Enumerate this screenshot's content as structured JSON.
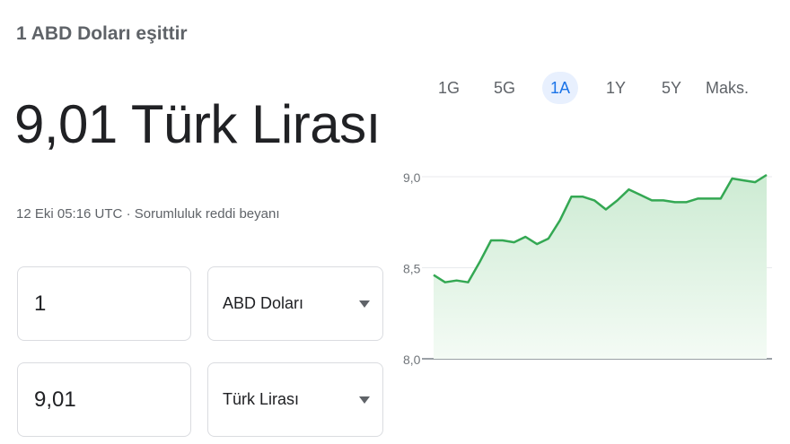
{
  "header": {
    "subtitle": "1 ABD Doları eşittir",
    "result": "9,01 Türk Lirası",
    "timestamp": "12 Eki 05:16 UTC",
    "separator": "·",
    "disclaimer": "Sorumluluk reddi beyanı"
  },
  "converter": {
    "from_amount": "1",
    "from_currency": "ABD Doları",
    "to_amount": "9,01",
    "to_currency": "Türk Lirası"
  },
  "range_tabs": [
    {
      "label": "1G",
      "active": false
    },
    {
      "label": "5G",
      "active": false
    },
    {
      "label": "1A",
      "active": true
    },
    {
      "label": "1Y",
      "active": false
    },
    {
      "label": "5Y",
      "active": false
    },
    {
      "label": "Maks.",
      "active": false
    }
  ],
  "colors": {
    "line": "#34a853",
    "fill_top": "#cdebd3",
    "fill_bottom": "#f4fbf5",
    "active_tab_bg": "#e8f0fe",
    "active_tab_text": "#1a73e8"
  },
  "chart_data": {
    "type": "area",
    "yticks": [
      "9,0",
      "8,5",
      "8,0"
    ],
    "ytick_values": [
      9.0,
      8.5,
      8.0
    ],
    "ylim": [
      8.0,
      9.0
    ],
    "values": [
      8.46,
      8.42,
      8.43,
      8.42,
      8.53,
      8.65,
      8.65,
      8.64,
      8.67,
      8.63,
      8.66,
      8.76,
      8.89,
      8.89,
      8.87,
      8.82,
      8.87,
      8.93,
      8.9,
      8.87,
      8.87,
      8.86,
      8.86,
      8.88,
      8.88,
      8.88,
      8.99,
      8.98,
      8.97,
      9.01
    ]
  }
}
